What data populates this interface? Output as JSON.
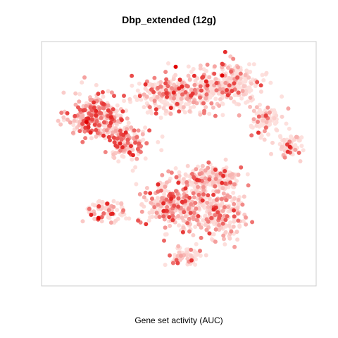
{
  "chart_data": {
    "type": "scatter",
    "title": "Dbp_extended (12g)",
    "xlabel": "Gene set activity (AUC)",
    "ylabel": "",
    "xlim": [
      0,
      100
    ],
    "ylim": [
      0,
      100
    ],
    "grid": false,
    "legend": "none",
    "point_symbol": "filled circle",
    "color_scale": {
      "low": "#fde0dd",
      "high": "#e00000"
    },
    "clusters": [
      {
        "cx": 18,
        "cy": 71,
        "sx": 7,
        "sy": 7,
        "n": 260,
        "value_mean": 0.35
      },
      {
        "cx": 30,
        "cy": 60,
        "sx": 6,
        "sy": 6,
        "n": 150,
        "value_mean": 0.3
      },
      {
        "cx": 22,
        "cy": 29,
        "sx": 5,
        "sy": 3.5,
        "n": 70,
        "value_mean": 0.25
      },
      {
        "cx": 50,
        "cy": 81,
        "sx": 11,
        "sy": 6,
        "n": 330,
        "value_mean": 0.15
      },
      {
        "cx": 70,
        "cy": 85,
        "sx": 8,
        "sy": 6,
        "n": 230,
        "value_mean": 0.12
      },
      {
        "cx": 83,
        "cy": 69,
        "sx": 4,
        "sy": 5,
        "n": 100,
        "value_mean": 0.05
      },
      {
        "cx": 93,
        "cy": 58,
        "sx": 3,
        "sy": 5,
        "n": 70,
        "value_mean": 0.04
      },
      {
        "cx": 63,
        "cy": 44,
        "sx": 7,
        "sy": 4,
        "n": 180,
        "value_mean": 0.12
      },
      {
        "cx": 50,
        "cy": 32,
        "sx": 9,
        "sy": 8,
        "n": 360,
        "value_mean": 0.25
      },
      {
        "cx": 67,
        "cy": 28,
        "sx": 6,
        "sy": 7,
        "n": 190,
        "value_mean": 0.18
      },
      {
        "cx": 52,
        "cy": 9,
        "sx": 5,
        "sy": 2.5,
        "n": 70,
        "value_mean": 0.1
      }
    ]
  }
}
